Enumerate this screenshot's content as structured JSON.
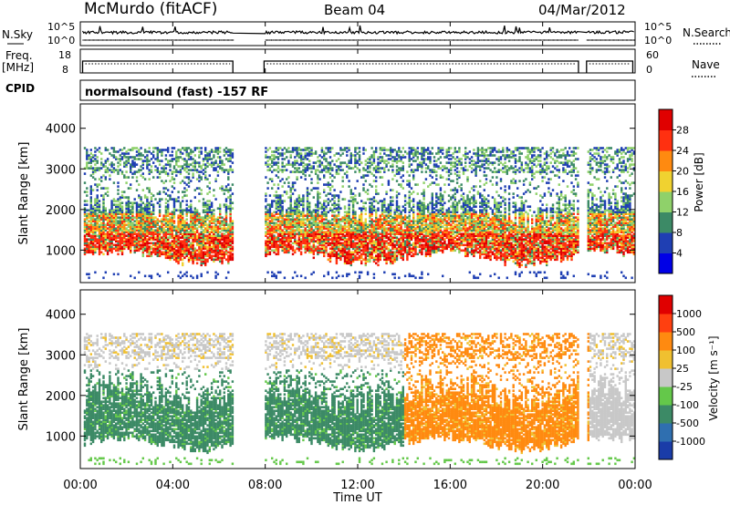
{
  "header": {
    "station": "McMurdo (fitACF)",
    "beam": "Beam 04",
    "date": "04/Mar/2012"
  },
  "noise_panel": {
    "left_label": "N.Sky",
    "left_ticks": [
      "10^5",
      "10^0"
    ],
    "right_label": "N.Search",
    "right_ticks": [
      "10^5",
      "10^0"
    ]
  },
  "freq_panel": {
    "left_label_1": "Freq.",
    "left_label_2": "[MHz]",
    "left_ticks": [
      "18",
      "8"
    ],
    "right_label": "Nave",
    "right_ticks": [
      "60",
      "0"
    ]
  },
  "cpid": {
    "label": "CPID",
    "mode": "normalsound (fast) -157 RF"
  },
  "chart_data": [
    {
      "type": "heatmap",
      "name": "Power",
      "ylabel": "Slant Range [km]",
      "xlabel": "Time UT",
      "ylim": [
        200,
        4600
      ],
      "yticks": [
        "1000",
        "2000",
        "3000",
        "4000"
      ],
      "xticks": [
        "00:00",
        "04:00",
        "08:00",
        "12:00",
        "16:00",
        "20:00",
        "00:00"
      ],
      "x_range_hours": [
        0,
        24
      ],
      "data_gaps_hours": [
        [
          6.6,
          7.95
        ],
        [
          21.55,
          21.9
        ]
      ],
      "colorbar": {
        "label": "Power [dB]",
        "ticks": [
          "4",
          "8",
          "12",
          "16",
          "20",
          "24",
          "28"
        ],
        "colors": [
          "#0000e6",
          "#1f3fb3",
          "#3c8a66",
          "#8fd16a",
          "#f0d230",
          "#ff8a10",
          "#ff3010",
          "#e00000"
        ]
      }
    },
    {
      "type": "heatmap",
      "name": "Velocity",
      "ylabel": "Slant Range [km]",
      "xlabel": "Time UT",
      "ylim": [
        200,
        4600
      ],
      "yticks": [
        "1000",
        "2000",
        "3000",
        "4000"
      ],
      "xticks": [
        "00:00",
        "04:00",
        "08:00",
        "12:00",
        "16:00",
        "20:00",
        "00:00"
      ],
      "x_range_hours": [
        0,
        24
      ],
      "colorbar": {
        "label": "Velocity [m s⁻¹]",
        "ticks": [
          "1000",
          "500",
          "100",
          "25",
          "-25",
          "-100",
          "-500",
          "-1000"
        ],
        "colors": [
          "#1a3ca8",
          "#2f6fb0",
          "#3c8a66",
          "#64c84a",
          "#c8c8c8",
          "#f0c030",
          "#ff8a10",
          "#ff4010",
          "#e00000"
        ]
      }
    }
  ],
  "colors": {
    "axis": "#000000",
    "background": "#ffffff"
  }
}
